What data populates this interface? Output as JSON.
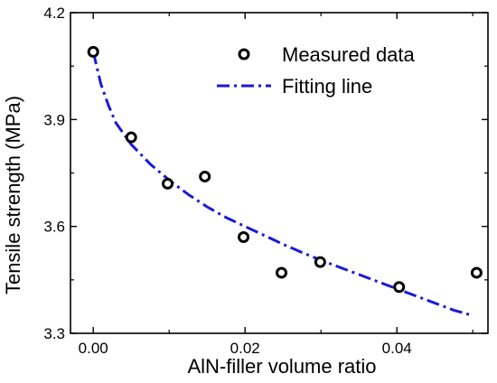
{
  "chart_data": {
    "type": "scatter",
    "xlabel": "AlN-filler volume ratio",
    "ylabel": "Tensile strength (MPa)",
    "xlim": [
      -0.003,
      0.052
    ],
    "ylim": [
      3.3,
      4.2
    ],
    "x_ticks": [
      0.0,
      0.02,
      0.04
    ],
    "x_tick_labels": [
      "0.00",
      "0.02",
      "0.04"
    ],
    "y_ticks": [
      3.3,
      3.6,
      3.9,
      4.2
    ],
    "y_tick_labels": [
      "3.3",
      "3.6",
      "3.9",
      "4.2"
    ],
    "grid": false,
    "legend_position": "top-right",
    "series": [
      {
        "name": "Measured data",
        "style": "open-circle",
        "color": "#000000",
        "x": [
          0.0,
          0.005,
          0.0098,
          0.0147,
          0.0198,
          0.0248,
          0.0299,
          0.0403,
          0.0505
        ],
        "y": [
          4.09,
          3.85,
          3.72,
          3.74,
          3.57,
          3.47,
          3.5,
          3.43,
          3.47
        ]
      },
      {
        "name": "Fitting line",
        "style": "dash-dot",
        "color": "#1a1ad6",
        "x": [
          0.0,
          0.001,
          0.002,
          0.003,
          0.005,
          0.0075,
          0.01,
          0.0125,
          0.015,
          0.0175,
          0.02,
          0.0225,
          0.025,
          0.0275,
          0.03,
          0.0325,
          0.035,
          0.0375,
          0.04,
          0.0425,
          0.045,
          0.0475,
          0.05
        ],
        "y": [
          4.09,
          4.0,
          3.94,
          3.89,
          3.83,
          3.775,
          3.73,
          3.69,
          3.655,
          3.625,
          3.6,
          3.575,
          3.55,
          3.527,
          3.505,
          3.485,
          3.465,
          3.445,
          3.425,
          3.405,
          3.385,
          3.365,
          3.35
        ]
      }
    ]
  }
}
